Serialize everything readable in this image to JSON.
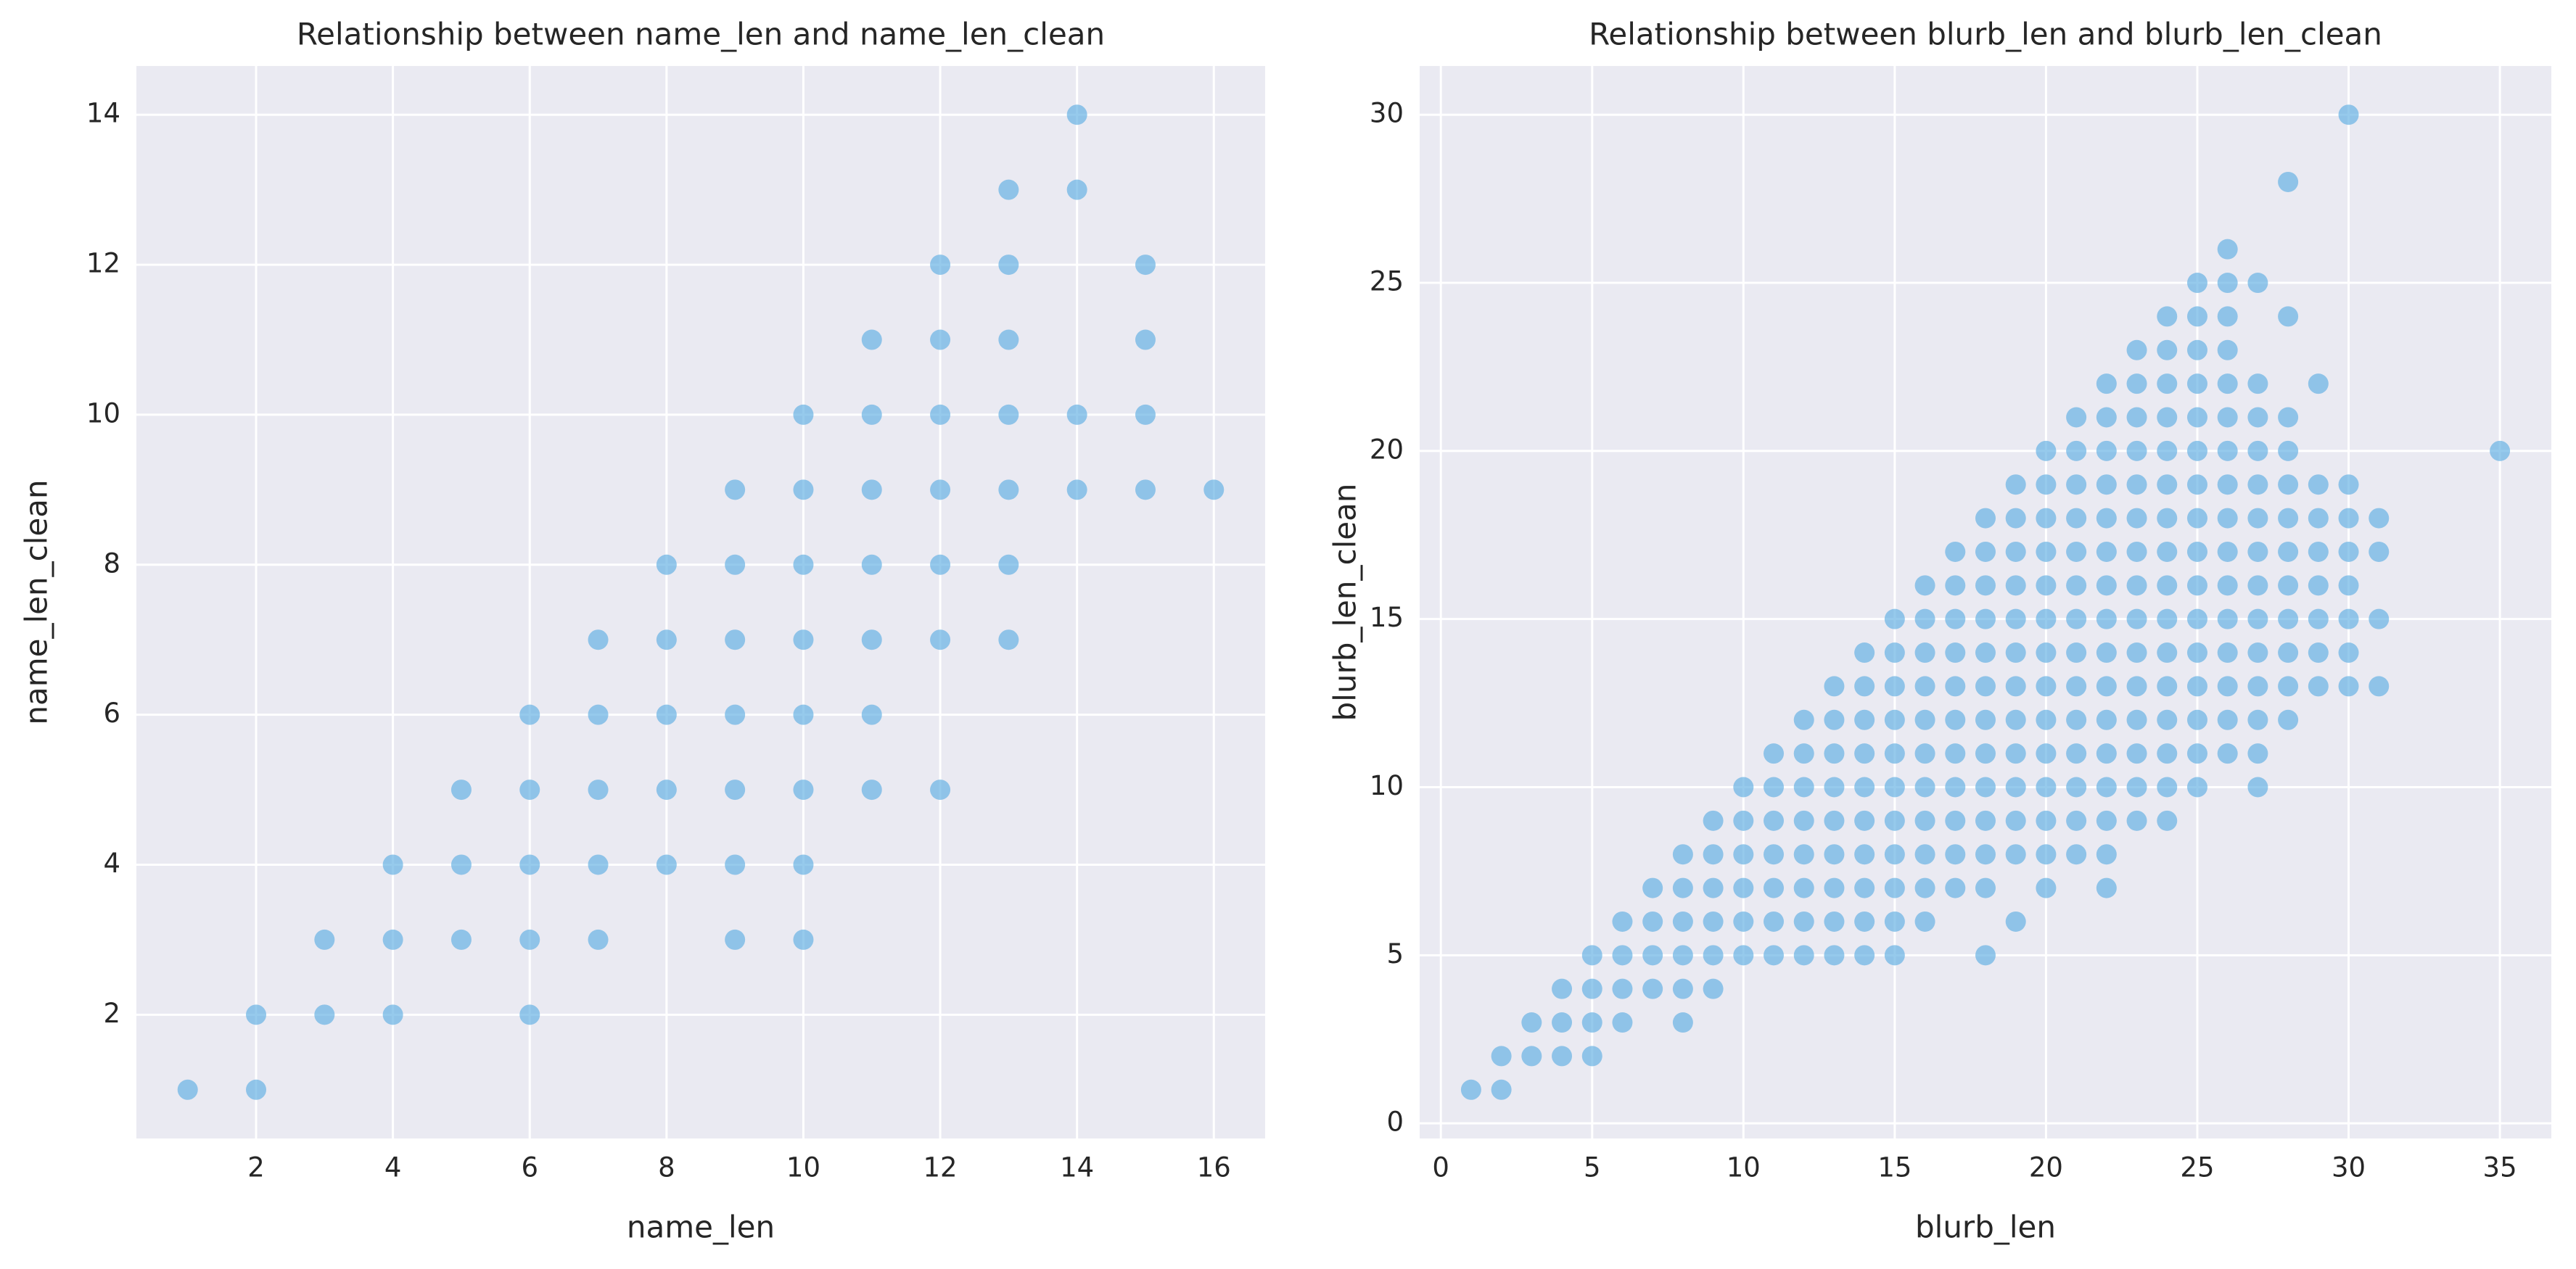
{
  "chart_data": [
    {
      "type": "scatter",
      "title": "Relationship between name_len and name_len_clean",
      "xlabel": "name_len",
      "ylabel": "name_len_clean",
      "color": "#5dade2",
      "grid": true,
      "xlim": [
        0.25,
        16.75
      ],
      "ylim": [
        0.35,
        14.65
      ],
      "xticks": [
        2,
        4,
        6,
        8,
        10,
        12,
        14,
        16
      ],
      "yticks": [
        2,
        4,
        6,
        8,
        10,
        12,
        14
      ],
      "x": [
        1,
        2,
        2,
        3,
        3,
        4,
        4,
        4,
        5,
        5,
        5,
        6,
        6,
        6,
        6,
        6,
        7,
        7,
        7,
        7,
        7,
        8,
        8,
        8,
        8,
        8,
        9,
        9,
        9,
        9,
        9,
        9,
        9,
        10,
        10,
        10,
        10,
        10,
        10,
        10,
        10,
        11,
        11,
        11,
        11,
        11,
        11,
        11,
        12,
        12,
        12,
        12,
        12,
        12,
        12,
        13,
        13,
        13,
        13,
        13,
        13,
        13,
        14,
        14,
        14,
        14,
        15,
        15,
        15,
        15,
        16
      ],
      "y": [
        1,
        1,
        2,
        2,
        3,
        2,
        3,
        4,
        3,
        4,
        5,
        2,
        3,
        4,
        5,
        6,
        3,
        4,
        5,
        6,
        7,
        4,
        5,
        6,
        7,
        8,
        3,
        4,
        5,
        6,
        7,
        8,
        9,
        3,
        4,
        5,
        6,
        7,
        8,
        9,
        10,
        5,
        6,
        7,
        8,
        9,
        10,
        11,
        5,
        7,
        8,
        9,
        10,
        11,
        12,
        7,
        8,
        9,
        10,
        11,
        12,
        13,
        9,
        10,
        13,
        14,
        9,
        10,
        11,
        12,
        9
      ]
    },
    {
      "type": "scatter",
      "title": "Relationship between blurb_len and blurb_len_clean",
      "xlabel": "blurb_len",
      "ylabel": "blurb_len_clean",
      "color": "#5dade2",
      "grid": true,
      "xlim": [
        -0.7,
        36.7
      ],
      "ylim": [
        -0.45,
        31.45
      ],
      "xticks": [
        0,
        5,
        10,
        15,
        20,
        25,
        30,
        35
      ],
      "yticks": [
        0,
        5,
        10,
        15,
        20,
        25,
        30
      ],
      "x": [
        1,
        2,
        2,
        3,
        3,
        4,
        4,
        4,
        5,
        5,
        5,
        5,
        6,
        6,
        6,
        6,
        7,
        7,
        7,
        7,
        8,
        8,
        8,
        8,
        8,
        8,
        9,
        9,
        9,
        9,
        9,
        9,
        10,
        10,
        10,
        10,
        10,
        10,
        11,
        11,
        11,
        11,
        11,
        11,
        11,
        12,
        12,
        12,
        12,
        12,
        12,
        12,
        12,
        13,
        13,
        13,
        13,
        13,
        13,
        13,
        13,
        13,
        14,
        14,
        14,
        14,
        14,
        14,
        14,
        14,
        14,
        14,
        15,
        15,
        15,
        15,
        15,
        15,
        15,
        15,
        15,
        15,
        15,
        16,
        16,
        16,
        16,
        16,
        16,
        16,
        16,
        16,
        16,
        16,
        17,
        17,
        17,
        17,
        17,
        17,
        17,
        17,
        17,
        17,
        17,
        18,
        18,
        18,
        18,
        18,
        18,
        18,
        18,
        18,
        18,
        18,
        18,
        18,
        19,
        19,
        19,
        19,
        19,
        19,
        19,
        19,
        19,
        19,
        19,
        19,
        19,
        20,
        20,
        20,
        20,
        20,
        20,
        20,
        20,
        20,
        20,
        20,
        20,
        20,
        20,
        21,
        21,
        21,
        21,
        21,
        21,
        21,
        21,
        21,
        21,
        21,
        21,
        21,
        21,
        22,
        22,
        22,
        22,
        22,
        22,
        22,
        22,
        22,
        22,
        22,
        22,
        22,
        22,
        22,
        22,
        23,
        23,
        23,
        23,
        23,
        23,
        23,
        23,
        23,
        23,
        23,
        23,
        23,
        23,
        23,
        24,
        24,
        24,
        24,
        24,
        24,
        24,
        24,
        24,
        24,
        24,
        24,
        24,
        24,
        24,
        24,
        25,
        25,
        25,
        25,
        25,
        25,
        25,
        25,
        25,
        25,
        25,
        25,
        25,
        25,
        25,
        25,
        26,
        26,
        26,
        26,
        26,
        26,
        26,
        26,
        26,
        26,
        26,
        26,
        26,
        26,
        26,
        26,
        27,
        27,
        27,
        27,
        27,
        27,
        27,
        27,
        27,
        27,
        27,
        27,
        27,
        27,
        28,
        28,
        28,
        28,
        28,
        28,
        28,
        28,
        28,
        28,
        28,
        28,
        29,
        29,
        29,
        29,
        29,
        29,
        29,
        29,
        30,
        30,
        30,
        30,
        30,
        30,
        30,
        30,
        31,
        31,
        31,
        31,
        35
      ],
      "y": [
        1,
        1,
        2,
        2,
        3,
        2,
        3,
        4,
        2,
        3,
        4,
        5,
        3,
        4,
        5,
        6,
        4,
        5,
        6,
        7,
        3,
        4,
        5,
        6,
        7,
        8,
        4,
        5,
        6,
        7,
        8,
        9,
        5,
        6,
        7,
        8,
        9,
        10,
        5,
        6,
        7,
        8,
        9,
        10,
        11,
        5,
        6,
        7,
        8,
        9,
        10,
        11,
        12,
        5,
        6,
        7,
        8,
        9,
        10,
        11,
        12,
        13,
        5,
        6,
        7,
        8,
        9,
        10,
        11,
        12,
        13,
        14,
        5,
        6,
        7,
        8,
        9,
        10,
        11,
        12,
        13,
        14,
        15,
        6,
        7,
        8,
        9,
        10,
        11,
        12,
        13,
        14,
        15,
        16,
        7,
        8,
        9,
        10,
        11,
        12,
        13,
        14,
        15,
        16,
        17,
        5,
        7,
        8,
        9,
        10,
        11,
        12,
        13,
        14,
        15,
        16,
        17,
        18,
        6,
        8,
        9,
        10,
        11,
        12,
        13,
        14,
        15,
        16,
        17,
        18,
        19,
        7,
        8,
        9,
        10,
        11,
        12,
        13,
        14,
        15,
        16,
        17,
        18,
        19,
        20,
        8,
        9,
        10,
        11,
        12,
        13,
        14,
        15,
        16,
        17,
        18,
        19,
        20,
        21,
        7,
        8,
        9,
        10,
        11,
        12,
        13,
        14,
        15,
        16,
        17,
        18,
        19,
        20,
        21,
        22,
        9,
        10,
        11,
        12,
        13,
        14,
        15,
        16,
        17,
        18,
        19,
        20,
        21,
        22,
        23,
        9,
        10,
        11,
        12,
        13,
        14,
        15,
        16,
        17,
        18,
        19,
        20,
        21,
        22,
        23,
        24,
        10,
        11,
        12,
        13,
        14,
        15,
        16,
        17,
        18,
        19,
        20,
        21,
        22,
        23,
        24,
        25,
        11,
        12,
        13,
        14,
        15,
        16,
        17,
        18,
        19,
        20,
        21,
        22,
        23,
        24,
        25,
        26,
        10,
        11,
        12,
        13,
        14,
        15,
        16,
        17,
        18,
        19,
        20,
        21,
        22,
        25,
        12,
        13,
        14,
        15,
        16,
        17,
        18,
        19,
        20,
        21,
        24,
        28,
        13,
        14,
        15,
        16,
        17,
        18,
        19,
        22,
        13,
        14,
        15,
        16,
        17,
        18,
        19,
        30,
        13,
        15,
        17,
        18,
        20
      ]
    }
  ]
}
